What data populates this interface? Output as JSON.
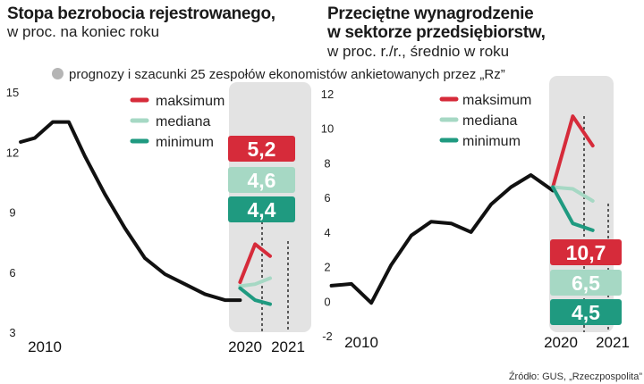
{
  "charts": {
    "left": {
      "title": "Stopa bezrobocia rejestrowanego,",
      "subtitle": "w proc. na koniec roku"
    },
    "right": {
      "title_line1": "Przeciętne wynagrodzenie",
      "title_line2": "w sektorze przedsiębiorstw,",
      "subtitle": "w proc. r./r., średnio w roku"
    }
  },
  "note": "prognozy i szacunki 25 zespołów ekonomistów ankietowanych przez „Rz”",
  "source": "Źródło: GUS, „Rzeczpospolita”",
  "colors": {
    "history": "#111111",
    "maksimum": "#d62b3a",
    "mediana": "#a6d8c4",
    "minimum": "#1f9a80",
    "forecast_band": "#e3e3e3",
    "note_dot": "#b5b5b5"
  },
  "chart_data": [
    {
      "type": "line",
      "ylim": [
        3,
        15
      ],
      "yticks": [
        "15",
        "12",
        "9",
        "6",
        "3"
      ],
      "xticks": [
        "2010",
        "2020",
        "2021"
      ],
      "legend": [
        "maksimum",
        "mediana",
        "minimum"
      ],
      "history": {
        "x": [
          2008.8,
          2009.5,
          2010.4,
          2011.2,
          2012.0,
          2013.0,
          2014.0,
          2015.0,
          2016.0,
          2017.0,
          2018.0,
          2019.0,
          2019.75
        ],
        "y": [
          12.5,
          12.7,
          13.5,
          13.5,
          11.8,
          9.9,
          8.2,
          6.7,
          5.9,
          5.4,
          4.9,
          4.6,
          4.6
        ]
      },
      "forecast_x": [
        2019.75,
        2020.5,
        2021.25
      ],
      "series": [
        {
          "name": "maksimum",
          "values": [
            5.5,
            7.4,
            6.8
          ]
        },
        {
          "name": "mediana",
          "values": [
            5.3,
            5.4,
            5.7
          ]
        },
        {
          "name": "minimum",
          "values": [
            5.2,
            4.6,
            4.4
          ]
        }
      ],
      "value_labels": [
        "5,2",
        "4,6",
        "4,4"
      ]
    },
    {
      "type": "line",
      "ylim": [
        -2,
        12
      ],
      "yticks": [
        "12",
        "10",
        "8",
        "6",
        "4",
        "2",
        "0",
        "-2"
      ],
      "xticks": [
        "2010",
        "2020",
        "2021"
      ],
      "legend": [
        "maksimum",
        "mediana",
        "minimum"
      ],
      "history": {
        "x": [
          2008.5,
          2009.5,
          2010.5,
          2011.5,
          2012.5,
          2013.5,
          2014.5,
          2015.5,
          2016.5,
          2017.5,
          2018.5,
          2019.6
        ],
        "y": [
          0.9,
          1.0,
          -0.1,
          2.1,
          3.8,
          4.6,
          4.5,
          4.0,
          5.6,
          6.6,
          7.3,
          6.4
        ]
      },
      "forecast_x": [
        2019.6,
        2020.6,
        2021.6
      ],
      "series": [
        {
          "name": "maksimum",
          "values": [
            6.6,
            10.7,
            9.0
          ]
        },
        {
          "name": "mediana",
          "values": [
            6.6,
            6.5,
            5.8
          ]
        },
        {
          "name": "minimum",
          "values": [
            6.6,
            4.5,
            4.1
          ]
        }
      ],
      "value_labels": [
        "10,7",
        "6,5",
        "4,5"
      ]
    }
  ]
}
